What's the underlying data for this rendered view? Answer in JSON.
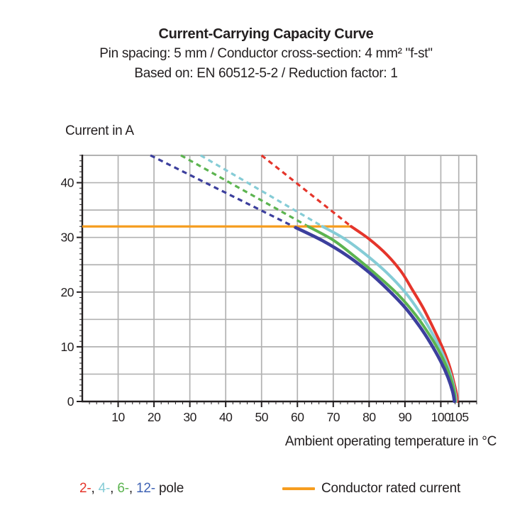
{
  "header": {
    "title": "Current-Carrying Capacity Curve",
    "subtitle1": "Pin spacing: 5 mm / Conductor cross-section: 4 mm² \"f-st\"",
    "subtitle2": "Based on: EN 60512-5-2 / Reduction factor: 1"
  },
  "chart_data": {
    "type": "line",
    "title": "Current-Carrying Capacity Curve",
    "xlabel": "Ambient operating temperature in °C",
    "ylabel": "Current in A",
    "xlim": [
      0,
      110
    ],
    "ylim": [
      0,
      45
    ],
    "xticks": [
      10,
      20,
      30,
      40,
      50,
      60,
      70,
      80,
      90,
      100,
      105
    ],
    "yticks": [
      0,
      10,
      20,
      30,
      40
    ],
    "x_gridlines": [
      10,
      20,
      30,
      40,
      50,
      60,
      70,
      80,
      90,
      100,
      105
    ],
    "y_gridline_step": 5,
    "x_minor_step": 2,
    "y_minor_step": 1,
    "grid_color": "#b2b2b2",
    "axis_color": "#231f20",
    "rated_current": {
      "label": "Conductor rated current",
      "value": 32,
      "x_start": 0,
      "x_end": 75,
      "color": "#f69d1f"
    },
    "series": [
      {
        "name": "2-pole",
        "color": "#e5352b",
        "width": 4,
        "dash_start": [
          50,
          45
        ],
        "points": [
          [
            75,
            32
          ],
          [
            80,
            29.7
          ],
          [
            85,
            26.8
          ],
          [
            89,
            23.7
          ],
          [
            92,
            20.5
          ],
          [
            95,
            17.2
          ],
          [
            98,
            13.3
          ],
          [
            100.5,
            9.8
          ],
          [
            102.5,
            6.3
          ],
          [
            103.9,
            2.8
          ],
          [
            104.5,
            0.9
          ],
          [
            104.5,
            0
          ]
        ]
      },
      {
        "name": "4-pole",
        "color": "#85ccd6",
        "width": 4,
        "dash_start": [
          33,
          45
        ],
        "points": [
          [
            67,
            32
          ],
          [
            73,
            29.8
          ],
          [
            79,
            26.9
          ],
          [
            85,
            23.5
          ],
          [
            90,
            20
          ],
          [
            94,
            16.4
          ],
          [
            98,
            12
          ],
          [
            101,
            8
          ],
          [
            103,
            4.4
          ],
          [
            104.1,
            1.2
          ],
          [
            104.2,
            0
          ]
        ]
      },
      {
        "name": "6-pole",
        "color": "#5cb450",
        "width": 4,
        "dash_start": [
          27.5,
          45
        ],
        "points": [
          [
            63,
            32
          ],
          [
            70,
            29.5
          ],
          [
            76,
            26.5
          ],
          [
            82,
            23.2
          ],
          [
            88,
            19.6
          ],
          [
            93,
            15.8
          ],
          [
            97,
            12
          ],
          [
            100,
            8.6
          ],
          [
            102.3,
            5.2
          ],
          [
            103.7,
            2
          ],
          [
            104,
            0
          ]
        ]
      },
      {
        "name": "12-pole",
        "color": "#3c3f9d",
        "width": 4.6,
        "dash_start": [
          19,
          45
        ],
        "points": [
          [
            59.5,
            31.8
          ],
          [
            67,
            29.4
          ],
          [
            74,
            26.6
          ],
          [
            80,
            23.6
          ],
          [
            85,
            20.6
          ],
          [
            90,
            17.2
          ],
          [
            94,
            13.8
          ],
          [
            97,
            10.8
          ],
          [
            100,
            7.3
          ],
          [
            102,
            4.4
          ],
          [
            103.3,
            1.8
          ],
          [
            103.8,
            0
          ]
        ]
      }
    ]
  },
  "legend": {
    "poles": [
      {
        "label": "2-",
        "color": "#e5352b"
      },
      {
        "label": "4-",
        "color": "#85ccd6"
      },
      {
        "label": "6-",
        "color": "#5cb450"
      },
      {
        "label": "12-",
        "color": "#3f63b4"
      }
    ],
    "separator": ", ",
    "suffix": " pole",
    "rated_label": "Conductor rated current",
    "rated_color": "#f69d1f"
  }
}
